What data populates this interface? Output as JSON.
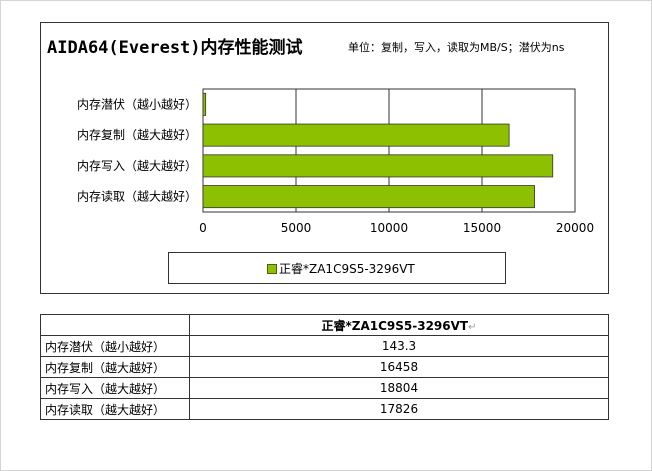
{
  "chart_data": {
    "type": "bar",
    "orientation": "horizontal",
    "title": "AIDA64(Everest)内存性能测试",
    "subtitle": "单位：复制，写入，读取为MB/S；潜伏为ns",
    "categories": [
      "内存潜伏（越小越好）",
      "内存复制（越大越好）",
      "内存写入（越大越好）",
      "内存读取（越大越好）"
    ],
    "series": [
      {
        "name": "正睿*ZA1C9S5-3296VT",
        "values": [
          143.3,
          16458,
          18804,
          17826
        ],
        "color": "#8cc000"
      }
    ],
    "xlim": [
      0,
      20000
    ],
    "xticks": [
      "0",
      "5000",
      "10000",
      "15000",
      "20000"
    ],
    "grid": true,
    "legend_position": "bottom"
  },
  "table": {
    "header": "正睿*ZA1C9S5-3296VT",
    "return_mark": "↵",
    "rows": [
      {
        "label": "内存潜伏（越小越好）",
        "value": "143.3"
      },
      {
        "label": "内存复制（越大越好）",
        "value": "16458"
      },
      {
        "label": "内存写入（越大越好）",
        "value": "18804"
      },
      {
        "label": "内存读取（越大越好）",
        "value": "17826"
      }
    ]
  }
}
